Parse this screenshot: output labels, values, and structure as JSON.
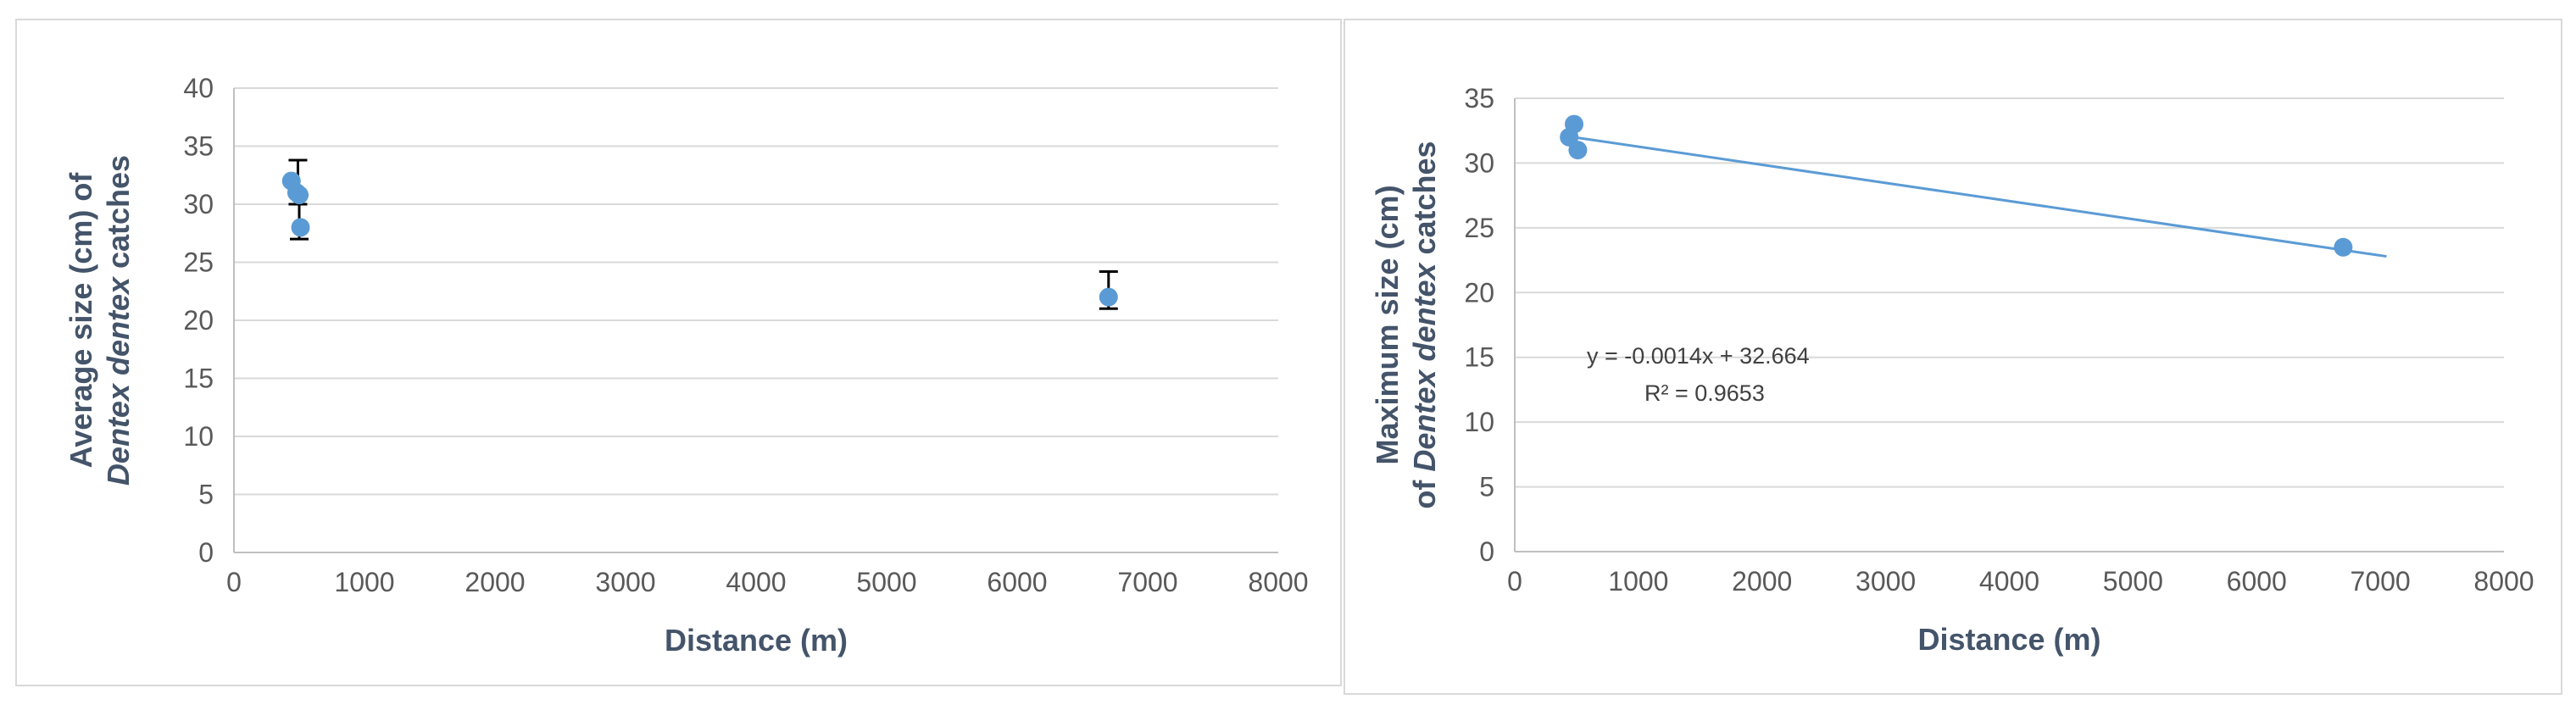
{
  "chart_data": [
    {
      "type": "scatter",
      "title": "",
      "xlabel": "Distance (m)",
      "ylabel_line1": "Average size (cm) of",
      "ylabel_line2_italic": "Dentex dentex",
      "ylabel_line2_rest": " catches",
      "xlim": [
        0,
        8000
      ],
      "ylim": [
        0,
        40
      ],
      "x_ticks": [
        0,
        1000,
        2000,
        3000,
        4000,
        5000,
        6000,
        7000,
        8000
      ],
      "y_ticks": [
        0,
        5,
        10,
        15,
        20,
        25,
        30,
        35,
        40
      ],
      "grid": "horizontal",
      "marker_color": "#5b9bd5",
      "series": [
        {
          "x": [
            440,
            480,
            500,
            510,
            6700
          ],
          "y": [
            32,
            31,
            30.8,
            28,
            22
          ],
          "error_bars": [
            {
              "x": 490,
              "low": 30,
              "high": 33.8
            },
            {
              "x": 500,
              "low": 27,
              "high": 30.8
            },
            {
              "x": 6700,
              "low": 21,
              "high": 24.2
            }
          ]
        }
      ]
    },
    {
      "type": "scatter",
      "title": "",
      "xlabel": "Distance (m)",
      "ylabel_line1": "Maximum size (cm)",
      "ylabel_line2_pre": "of ",
      "ylabel_line2_italic": "Dentex dentex",
      "ylabel_line2_rest": " catches",
      "xlim": [
        0,
        8000
      ],
      "ylim": [
        0,
        35
      ],
      "x_ticks": [
        0,
        1000,
        2000,
        3000,
        4000,
        5000,
        6000,
        7000,
        8000
      ],
      "y_ticks": [
        0,
        5,
        10,
        15,
        20,
        25,
        30,
        35
      ],
      "grid": "horizontal",
      "marker_color": "#5b9bd5",
      "series": [
        {
          "x": [
            440,
            480,
            510,
            6700
          ],
          "y": [
            32,
            33,
            31,
            23.5
          ]
        }
      ],
      "trendline": {
        "slope": -0.0014,
        "intercept": 32.664,
        "x_range": [
          450,
          7050
        ]
      },
      "equation_text": "y = -0.0014x + 32.664",
      "r2_text": "R² = 0.9653"
    }
  ]
}
